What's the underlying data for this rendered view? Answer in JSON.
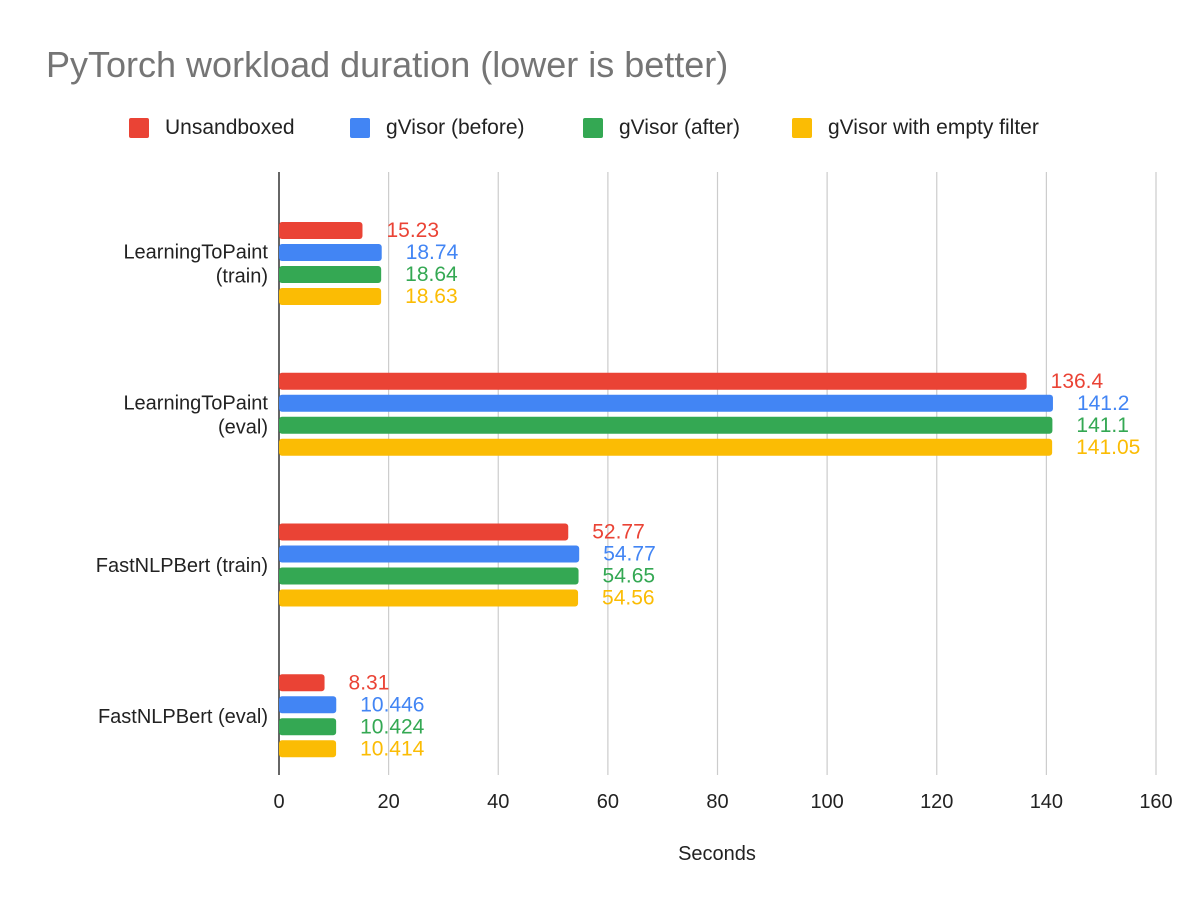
{
  "chart_data": {
    "type": "bar",
    "orientation": "horizontal",
    "title": "PyTorch workload duration (lower is better)",
    "xlabel": "Seconds",
    "ylabel": "",
    "xlim": [
      0,
      160
    ],
    "x_ticks": [
      "0",
      "20",
      "40",
      "60",
      "80",
      "100",
      "120",
      "140",
      "160"
    ],
    "x_tick_values": [
      0,
      20,
      40,
      60,
      80,
      100,
      120,
      140,
      160
    ],
    "grid": "vertical",
    "legend_position": "top",
    "categories": [
      [
        "LearningToPaint",
        "(train)"
      ],
      [
        "LearningToPaint",
        "(eval)"
      ],
      [
        "FastNLPBert (train)"
      ],
      [
        "FastNLPBert (eval)"
      ]
    ],
    "series": [
      {
        "name": "Unsandboxed",
        "color": "#EA4335",
        "values": [
          15.23,
          136.4,
          52.77,
          8.31
        ],
        "labels": [
          "15.23",
          "136.4",
          "52.77",
          "8.31"
        ]
      },
      {
        "name": "gVisor (before)",
        "color": "#4285F4",
        "values": [
          18.74,
          141.2,
          54.77,
          10.446
        ],
        "labels": [
          "18.74",
          "141.2",
          "54.77",
          "10.446"
        ]
      },
      {
        "name": "gVisor (after)",
        "color": "#34A853",
        "values": [
          18.64,
          141.1,
          54.65,
          10.424
        ],
        "labels": [
          "18.64",
          "141.1",
          "54.65",
          "10.424"
        ]
      },
      {
        "name": "gVisor with empty filter",
        "color": "#FBBC04",
        "values": [
          18.63,
          141.05,
          54.56,
          10.414
        ],
        "labels": [
          "18.63",
          "141.05",
          "54.56",
          "10.414"
        ]
      }
    ]
  },
  "colors": {
    "title": "#757575",
    "text": "#222222",
    "grid": "#cccccc",
    "axis": "#333333"
  }
}
